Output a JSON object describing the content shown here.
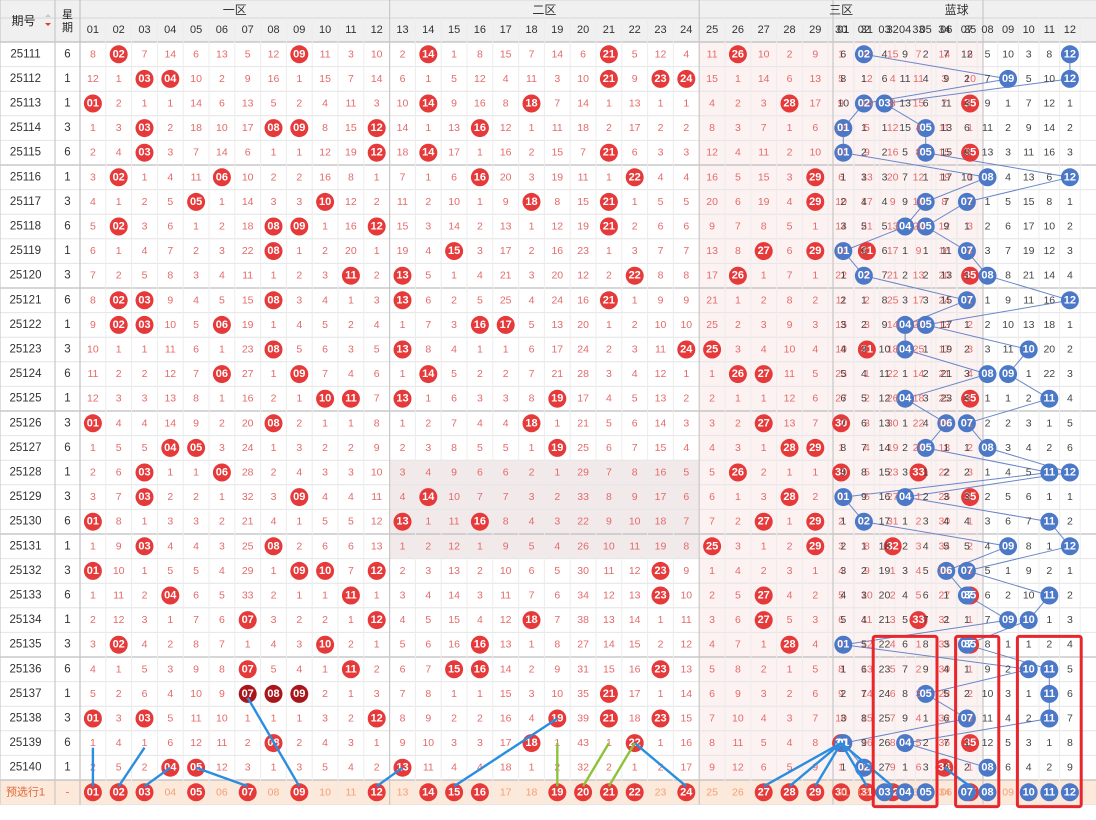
{
  "header": {
    "period_label": "期号",
    "weekday_label": "星期",
    "zones": [
      "一区",
      "二区",
      "三区",
      "蓝球"
    ]
  },
  "red_columns": [
    "01",
    "02",
    "03",
    "04",
    "05",
    "06",
    "07",
    "08",
    "09",
    "10",
    "11",
    "12",
    "13",
    "14",
    "15",
    "16",
    "17",
    "18",
    "19",
    "20",
    "21",
    "22",
    "23",
    "24",
    "25",
    "26",
    "27",
    "28",
    "29",
    "30",
    "31",
    "32",
    "33",
    "34",
    "35"
  ],
  "blue_columns": [
    "01",
    "02",
    "03",
    "04",
    "05",
    "06",
    "07",
    "08",
    "09",
    "10",
    "11",
    "12"
  ],
  "rows": [
    {
      "period": "25111",
      "weekday": "6",
      "reds": [
        2,
        9,
        14,
        21,
        26
      ],
      "blues": [
        2,
        12
      ]
    },
    {
      "period": "25112",
      "weekday": "1",
      "reds": [
        3,
        4,
        21,
        23,
        24
      ],
      "blues": [
        9,
        12
      ]
    },
    {
      "period": "25113",
      "weekday": "1",
      "reds": [
        1,
        14,
        18,
        28,
        35
      ],
      "blues": [
        2,
        3
      ]
    },
    {
      "period": "25114",
      "weekday": "3",
      "reds": [
        3,
        8,
        9,
        12,
        16
      ],
      "blues": [
        1,
        5
      ]
    },
    {
      "period": "25115",
      "weekday": "6",
      "reds": [
        3,
        12,
        14,
        21,
        35
      ],
      "blues": [
        1,
        5
      ]
    },
    {
      "period": "25116",
      "weekday": "1",
      "reds": [
        2,
        6,
        16,
        22,
        29
      ],
      "blues": [
        8,
        12
      ]
    },
    {
      "period": "25117",
      "weekday": "3",
      "reds": [
        5,
        10,
        18,
        21,
        29
      ],
      "blues": [
        5,
        7
      ]
    },
    {
      "period": "25118",
      "weekday": "6",
      "reds": [
        2,
        8,
        9,
        12,
        21
      ],
      "blues": [
        4,
        5
      ]
    },
    {
      "period": "25119",
      "weekday": "1",
      "reds": [
        8,
        15,
        27,
        29,
        31
      ],
      "blues": [
        1,
        7
      ]
    },
    {
      "period": "25120",
      "weekday": "3",
      "reds": [
        11,
        13,
        22,
        26,
        35
      ],
      "blues": [
        2,
        8
      ]
    },
    {
      "period": "25121",
      "weekday": "6",
      "reds": [
        2,
        3,
        8,
        13,
        21
      ],
      "blues": [
        7,
        12
      ]
    },
    {
      "period": "25122",
      "weekday": "1",
      "reds": [
        2,
        3,
        6,
        16,
        17
      ],
      "blues": [
        4,
        5
      ]
    },
    {
      "period": "25123",
      "weekday": "3",
      "reds": [
        8,
        13,
        24,
        25,
        31
      ],
      "blues": [
        4,
        10
      ]
    },
    {
      "period": "25124",
      "weekday": "6",
      "reds": [
        6,
        9,
        14,
        26,
        27
      ],
      "blues": [
        8,
        9
      ]
    },
    {
      "period": "25125",
      "weekday": "1",
      "reds": [
        10,
        11,
        13,
        19,
        35
      ],
      "blues": [
        4,
        11
      ]
    },
    {
      "period": "25126",
      "weekday": "3",
      "reds": [
        1,
        8,
        18,
        27,
        30
      ],
      "blues": [
        6,
        7
      ]
    },
    {
      "period": "25127",
      "weekday": "6",
      "reds": [
        4,
        5,
        19,
        28,
        29
      ],
      "blues": [
        5,
        8
      ]
    },
    {
      "period": "25128",
      "weekday": "1",
      "reds": [
        3,
        6,
        26,
        30,
        33
      ],
      "blues": [
        11,
        12
      ]
    },
    {
      "period": "25129",
      "weekday": "3",
      "reds": [
        3,
        9,
        14,
        28,
        35
      ],
      "blues": [
        1,
        4
      ]
    },
    {
      "period": "25130",
      "weekday": "6",
      "reds": [
        1,
        13,
        16,
        27,
        29
      ],
      "blues": [
        2,
        11
      ]
    },
    {
      "period": "25131",
      "weekday": "1",
      "reds": [
        3,
        8,
        25,
        29,
        32
      ],
      "blues": [
        9,
        12
      ]
    },
    {
      "period": "25132",
      "weekday": "3",
      "reds": [
        1,
        9,
        10,
        12,
        23
      ],
      "blues": [
        6,
        7
      ]
    },
    {
      "period": "25133",
      "weekday": "6",
      "reds": [
        4,
        11,
        23,
        27,
        35
      ],
      "blues": [
        7,
        11
      ]
    },
    {
      "period": "25134",
      "weekday": "1",
      "reds": [
        7,
        12,
        18,
        27,
        33
      ],
      "blues": [
        9,
        10
      ]
    },
    {
      "period": "25135",
      "weekday": "3",
      "reds": [
        2,
        10,
        16,
        28,
        35
      ],
      "blues": [
        1,
        7
      ]
    },
    {
      "period": "25136",
      "weekday": "6",
      "reds": [
        7,
        11,
        15,
        16,
        23
      ],
      "blues": [
        10,
        11
      ]
    },
    {
      "period": "25137",
      "weekday": "1",
      "reds": [
        7,
        8,
        9,
        21
      ],
      "blues": [
        5,
        11
      ]
    },
    {
      "period": "25138",
      "weekday": "3",
      "reds": [
        1,
        3,
        12,
        19,
        21,
        23
      ],
      "blues": [
        7,
        11
      ]
    },
    {
      "period": "25139",
      "weekday": "6",
      "reds": [
        8,
        18,
        22,
        30,
        35
      ],
      "blues": [
        1,
        4
      ]
    },
    {
      "period": "25140",
      "weekday": "1",
      "reds": [
        4,
        5,
        13,
        34
      ],
      "blues": [
        2,
        8
      ]
    }
  ],
  "prediction": {
    "label": "预选行1",
    "weekday": "-",
    "reds": [
      1,
      2,
      3,
      5,
      7,
      9,
      12,
      14,
      15,
      16,
      19,
      20,
      21,
      22,
      24,
      27,
      28,
      29,
      30,
      31,
      32,
      35
    ],
    "blues": [
      3,
      4,
      5,
      7,
      8,
      10,
      11,
      12
    ]
  },
  "colors": {
    "red_ball": "#e5393a",
    "dark_red_ball": "#a8151b",
    "blue_ball": "#4c78c8",
    "omission_text": "#e46a6a",
    "blue_omission_text": "#444444",
    "highlight_box": "#e8262b",
    "header_bg": "#f0f0f0",
    "prediction_bg": "#fde9da"
  },
  "chart_data": {
    "type": "table",
    "title": "",
    "sort_icon": "sort-caret-icon",
    "omission_rule": "cells without a ball show the omission count since that number last appeared"
  }
}
